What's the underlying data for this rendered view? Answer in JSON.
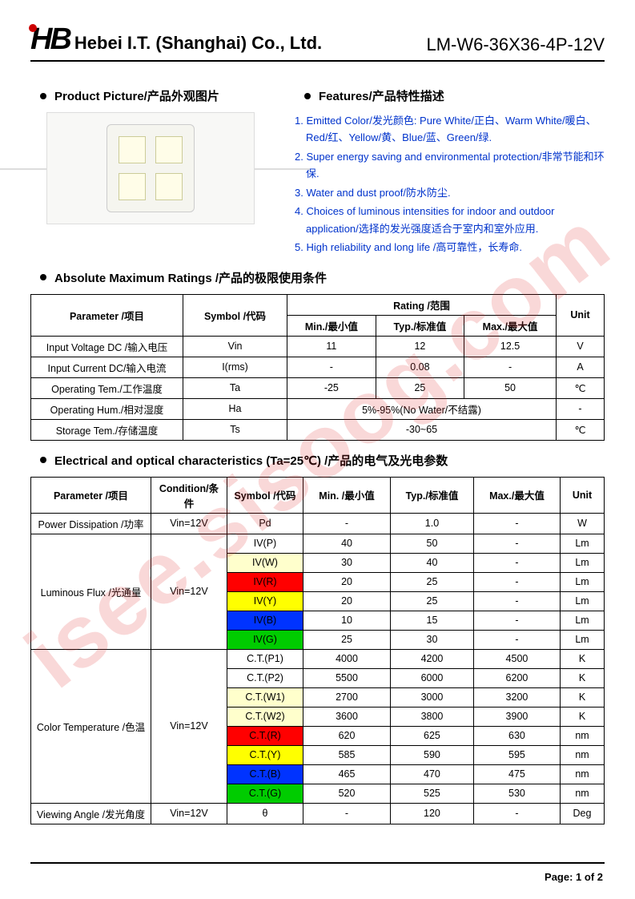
{
  "header": {
    "logo_text": "HB",
    "company": "Hebei I.T. (Shanghai) Co., Ltd.",
    "partno": "LM-W6-36X36-4P-12V"
  },
  "watermark": "isee.sisoog.com",
  "sections": {
    "pic_title": "Product Picture/产品外观图片",
    "features_title": "Features/产品特性描述",
    "abs_title": "Absolute Maximum Ratings /产品的极限使用条件",
    "elec_title": "Electrical and optical characteristics (Ta=25℃) /产品的电气及光电参数"
  },
  "features": [
    "1. Emitted Color/发光颜色: Pure White/正白、Warm White/暖白、Red/红、Yellow/黄、Blue/蓝、Green/绿.",
    "2. Super energy saving and environmental protection/非常节能和环保.",
    "3. Water and dust proof/防水防尘.",
    "4. Choices of luminous intensities for indoor and outdoor application/选择的发光强度适合于室内和室外应用.",
    "5. High reliability and long life /高可靠性，长寿命."
  ],
  "abs_table": {
    "head": {
      "param": "Parameter /项目",
      "sym": "Symbol /代码",
      "rating": "Rating /范围",
      "min": "Min./最小值",
      "typ": "Typ./标准值",
      "max": "Max./最大值",
      "unit": "Unit"
    },
    "rows": [
      {
        "param": "Input Voltage DC /输入电压",
        "sym": "Vin",
        "min": "11",
        "typ": "12",
        "max": "12.5",
        "unit": "V"
      },
      {
        "param": "Input Current DC/输入电流",
        "sym": "I(rms)",
        "min": "-",
        "typ": "0.08",
        "max": "-",
        "unit": "A"
      },
      {
        "param": "Operating Tem./工作温度",
        "sym": "Ta",
        "min": "-25",
        "typ": "25",
        "max": "50",
        "unit": "℃"
      },
      {
        "param": "Operating Hum./相对湿度",
        "sym": "Ha",
        "span": "5%-95%(No Water/不结露)",
        "unit": "-"
      },
      {
        "param": "Storage Tem./存储温度",
        "sym": "Ts",
        "span": "-30~65",
        "unit": "℃"
      }
    ]
  },
  "elec_table": {
    "head": {
      "param": "Parameter /项目",
      "cond": "Condition/条件",
      "sym": "Symbol /代码",
      "min": "Min. /最小值",
      "typ": "Typ./标准值",
      "max": "Max./最大值",
      "unit": "Unit"
    },
    "cond_label": "Vin=12V",
    "groups": [
      {
        "param": "Power Dissipation /功率",
        "rows": [
          {
            "sym": "Pd",
            "cls": "",
            "min": "-",
            "typ": "1.0",
            "max": "-",
            "unit": "W"
          }
        ]
      },
      {
        "param": "Luminous Flux /光通量",
        "rows": [
          {
            "sym": "IV(P)",
            "cls": "",
            "min": "40",
            "typ": "50",
            "max": "-",
            "unit": "Lm"
          },
          {
            "sym": "IV(W)",
            "cls": "sym-pw",
            "min": "30",
            "typ": "40",
            "max": "-",
            "unit": "Lm"
          },
          {
            "sym": "IV(R)",
            "cls": "sym-r",
            "min": "20",
            "typ": "25",
            "max": "-",
            "unit": "Lm"
          },
          {
            "sym": "IV(Y)",
            "cls": "sym-y",
            "min": "20",
            "typ": "25",
            "max": "-",
            "unit": "Lm"
          },
          {
            "sym": "IV(B)",
            "cls": "sym-b",
            "min": "10",
            "typ": "15",
            "max": "-",
            "unit": "Lm"
          },
          {
            "sym": "IV(G)",
            "cls": "sym-g",
            "min": "25",
            "typ": "30",
            "max": "-",
            "unit": "Lm"
          }
        ]
      },
      {
        "param": "Color Temperature /色温",
        "rows": [
          {
            "sym": "C.T.(P1)",
            "cls": "",
            "min": "4000",
            "typ": "4200",
            "max": "4500",
            "unit": "K"
          },
          {
            "sym": "C.T.(P2)",
            "cls": "",
            "min": "5500",
            "typ": "6000",
            "max": "6200",
            "unit": "K"
          },
          {
            "sym": "C.T.(W1)",
            "cls": "sym-pw",
            "min": "2700",
            "typ": "3000",
            "max": "3200",
            "unit": "K"
          },
          {
            "sym": "C.T.(W2)",
            "cls": "sym-pw",
            "min": "3600",
            "typ": "3800",
            "max": "3900",
            "unit": "K"
          },
          {
            "sym": "C.T.(R)",
            "cls": "sym-r",
            "min": "620",
            "typ": "625",
            "max": "630",
            "unit": "nm"
          },
          {
            "sym": "C.T.(Y)",
            "cls": "sym-y",
            "min": "585",
            "typ": "590",
            "max": "595",
            "unit": "nm"
          },
          {
            "sym": "C.T.(B)",
            "cls": "sym-b",
            "min": "465",
            "typ": "470",
            "max": "475",
            "unit": "nm"
          },
          {
            "sym": "C.T.(G)",
            "cls": "sym-g",
            "min": "520",
            "typ": "525",
            "max": "530",
            "unit": "nm"
          }
        ]
      },
      {
        "param": "Viewing Angle /发光角度",
        "rows": [
          {
            "sym": "θ",
            "cls": "",
            "min": "-",
            "typ": "120",
            "max": "-",
            "unit": "Deg"
          }
        ]
      }
    ]
  },
  "footer": "Page:  1  of  2",
  "colors": {
    "link_blue": "#0033cc",
    "pw": "#ffffcc",
    "red": "#ff0000",
    "yellow": "#ffff00",
    "blue": "#0033ff",
    "green": "#00cc00",
    "watermark": "rgba(220,40,40,0.18)"
  }
}
